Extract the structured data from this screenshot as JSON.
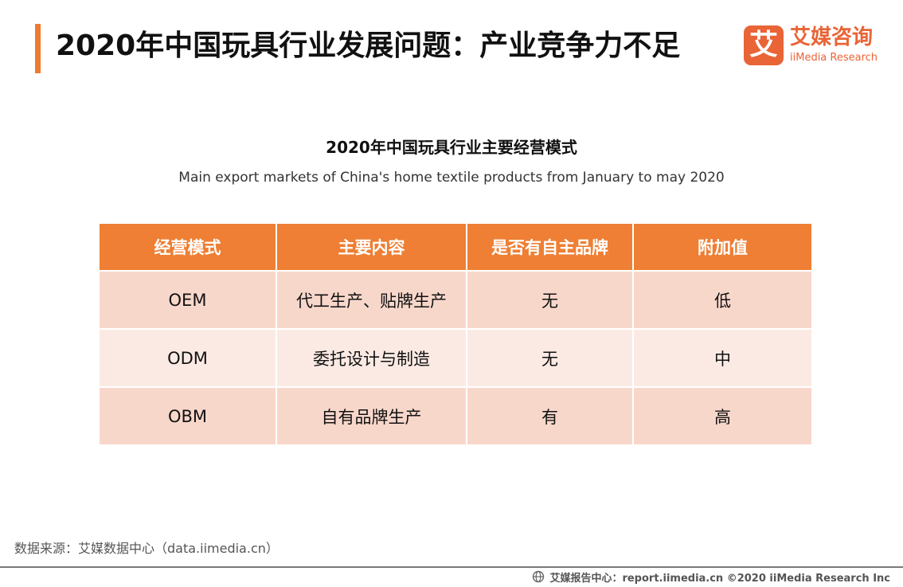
{
  "header": {
    "title": "2020年中国玩具行业发展问题：产业竞争力不足"
  },
  "logo": {
    "mark": "艾",
    "name_cn": "艾媒咨询",
    "name_en": "iiMedia Research"
  },
  "chart": {
    "title": "2020年中国玩具行业主要经营模式",
    "subtitle": "Main export markets of China's home textile products from January to may 2020"
  },
  "table": {
    "headers": [
      "经营模式",
      "主要内容",
      "是否有自主品牌",
      "附加值"
    ],
    "rows": [
      [
        "OEM",
        "代工生产、贴牌生产",
        "无",
        "低"
      ],
      [
        "ODM",
        "委托设计与制造",
        "无",
        "中"
      ],
      [
        "OBM",
        "自有品牌生产",
        "有",
        "高"
      ]
    ]
  },
  "source": {
    "text": "数据来源：艾媒数据中心（data.iimedia.cn）"
  },
  "footer": {
    "text": "艾媒报告中心：report.iimedia.cn ©2020  iiMedia Research  Inc"
  },
  "colors": {
    "accent": "#ee7a30",
    "header_fill": "#ee7f34",
    "row_dark": "#f8d7cb",
    "row_light": "#fbeae4",
    "logo": "#e96436"
  }
}
